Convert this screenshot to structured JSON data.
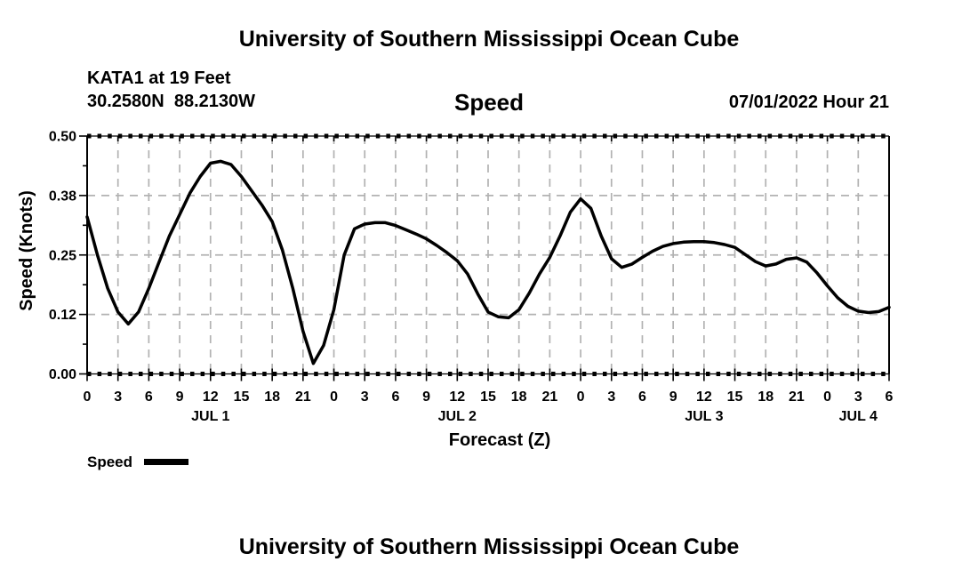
{
  "page": {
    "top_title": "University of Southern Mississippi Ocean Cube",
    "bottom_title": "University of Southern Mississippi Ocean Cube"
  },
  "header": {
    "station_id": "KATA1 at 19 Feet",
    "coordinates": "30.2580N  88.2130W",
    "plot_title": "Speed",
    "datetime": "07/01/2022 Hour 21"
  },
  "legend": {
    "label": "Speed"
  },
  "colors": {
    "line": "#000000",
    "grid": "#b2b2b2",
    "text": "#000000",
    "bg": "#ffffff"
  },
  "chart_data": {
    "type": "line",
    "title": "Speed",
    "xlabel": "Forecast (Z)",
    "ylabel": "Speed (Knots)",
    "ylim": [
      0,
      0.5
    ],
    "y_ticks": [
      0,
      0.125,
      0.25,
      0.375,
      0.5
    ],
    "y_tick_labels": [
      "0.00",
      "0.12",
      "0.25",
      "0.38",
      "0.50"
    ],
    "y_minor_ticks": [
      0.0625,
      0.1875,
      0.3125,
      0.4375
    ],
    "x_unit": "hours since JUL 1 00Z",
    "xlim_hours": [
      0,
      78
    ],
    "x_major_tick_step_hours": 3,
    "x_tick_labels": [
      "0",
      "3",
      "6",
      "9",
      "12",
      "15",
      "18",
      "21",
      "0",
      "3",
      "6",
      "9",
      "12",
      "15",
      "18",
      "21",
      "0",
      "3",
      "6",
      "9",
      "12",
      "15",
      "18",
      "21",
      "0",
      "3",
      "6"
    ],
    "day_labels": [
      {
        "label": "JUL 1",
        "hour": 12
      },
      {
        "label": "JUL 2",
        "hour": 36
      },
      {
        "label": "JUL 3",
        "hour": 60
      },
      {
        "label": "JUL 4",
        "hour": 75
      }
    ],
    "grid": true,
    "legend_position": "bottom-left",
    "series": [
      {
        "name": "Speed",
        "x_hours": [
          0,
          1,
          2,
          3,
          4,
          5,
          6,
          7,
          8,
          9,
          10,
          11,
          12,
          13,
          14,
          15,
          16,
          17,
          18,
          19,
          20,
          21,
          22,
          23,
          24,
          25,
          26,
          27,
          28,
          29,
          30,
          31,
          32,
          33,
          34,
          35,
          36,
          37,
          38,
          39,
          40,
          41,
          42,
          43,
          44,
          45,
          46,
          47,
          48,
          49,
          50,
          51,
          52,
          53,
          54,
          55,
          56,
          57,
          58,
          59,
          60,
          61,
          62,
          63,
          64,
          65,
          66,
          67,
          68,
          69,
          70,
          71,
          72,
          73,
          74,
          75,
          76,
          77,
          78
        ],
        "values": [
          0.33,
          0.25,
          0.18,
          0.13,
          0.105,
          0.13,
          0.18,
          0.235,
          0.29,
          0.335,
          0.38,
          0.415,
          0.443,
          0.447,
          0.44,
          0.415,
          0.385,
          0.355,
          0.32,
          0.26,
          0.18,
          0.09,
          0.022,
          0.06,
          0.135,
          0.25,
          0.305,
          0.315,
          0.318,
          0.318,
          0.312,
          0.303,
          0.294,
          0.284,
          0.27,
          0.255,
          0.238,
          0.21,
          0.168,
          0.13,
          0.12,
          0.118,
          0.135,
          0.17,
          0.21,
          0.245,
          0.29,
          0.34,
          0.368,
          0.348,
          0.29,
          0.242,
          0.224,
          0.231,
          0.245,
          0.258,
          0.268,
          0.274,
          0.277,
          0.278,
          0.278,
          0.276,
          0.272,
          0.266,
          0.251,
          0.236,
          0.227,
          0.231,
          0.241,
          0.244,
          0.235,
          0.212,
          0.185,
          0.16,
          0.142,
          0.132,
          0.129,
          0.131,
          0.14
        ]
      }
    ]
  }
}
